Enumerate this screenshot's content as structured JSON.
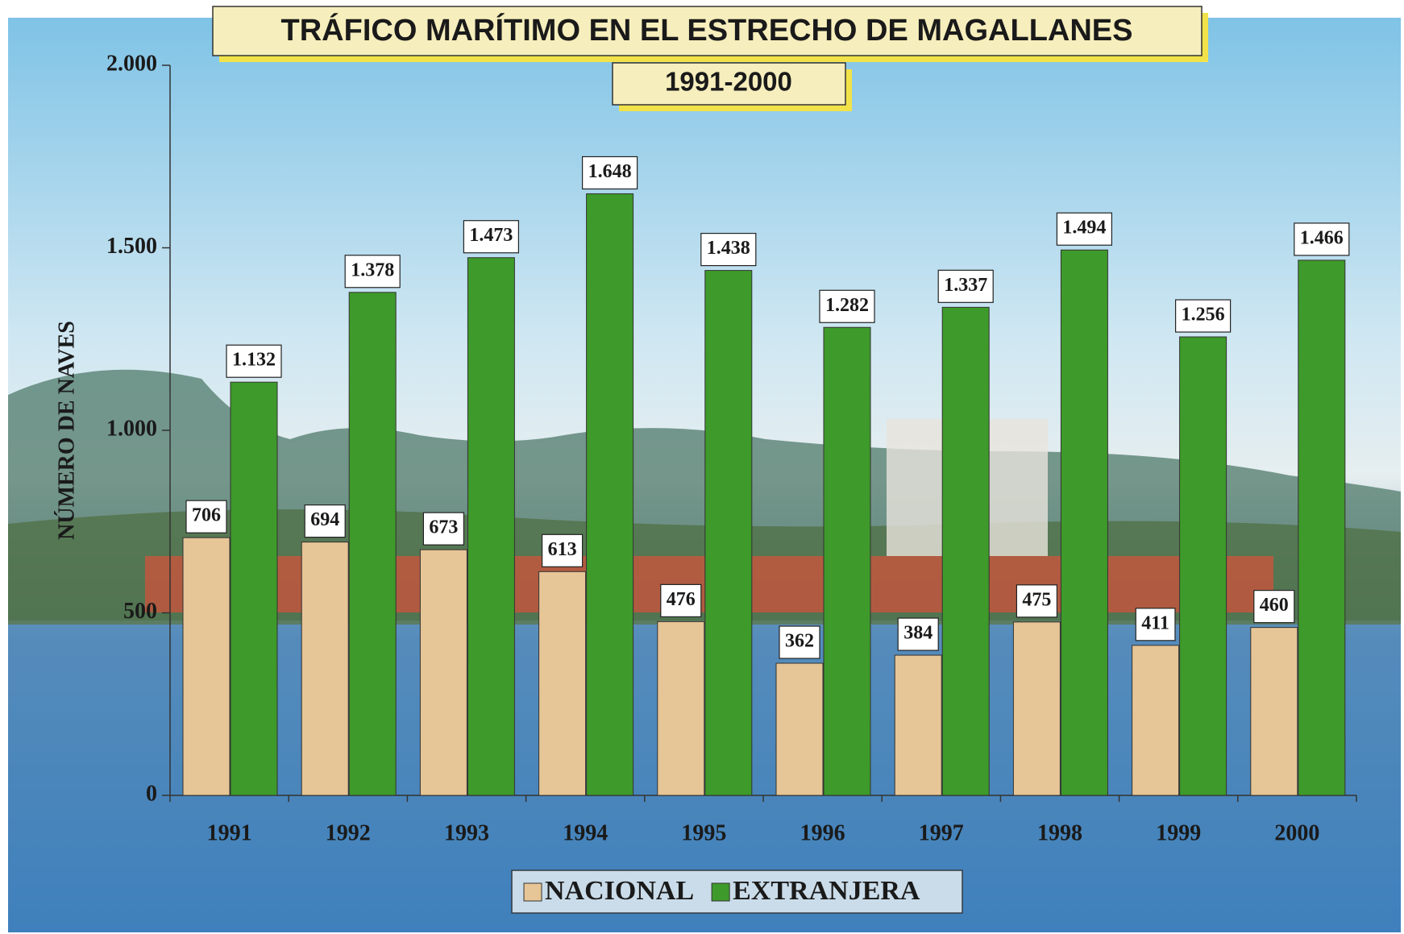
{
  "chart_data": {
    "type": "bar",
    "title": "TRÁFICO MARÍTIMO EN EL ESTRECHO DE MAGALLANES",
    "subtitle": "1991-2000",
    "y_label": "NÚMERO DE NAVES",
    "categories": [
      "1991",
      "1992",
      "1993",
      "1994",
      "1995",
      "1996",
      "1997",
      "1998",
      "1999",
      "2000"
    ],
    "series": [
      {
        "name": "NACIONAL",
        "color": "#e6c596",
        "values": [
          706,
          694,
          673,
          613,
          476,
          362,
          384,
          475,
          411,
          460
        ]
      },
      {
        "name": "EXTRANJERA",
        "color": "#3e9a2a",
        "values": [
          1132,
          1378,
          1473,
          1648,
          1438,
          1282,
          1337,
          1494,
          1256,
          1466
        ],
        "value_labels": [
          "1.132",
          "1.378",
          "1.473",
          "1.648",
          "1.438",
          "1.282",
          "1.337",
          "1.494",
          "1.256",
          "1.466"
        ]
      }
    ],
    "ylim": [
      0,
      2000
    ],
    "yticks": [
      0,
      500,
      {
        "value": 1000,
        "label": "1.000"
      },
      {
        "value": 1500,
        "label": "1.500"
      },
      {
        "value": 2000,
        "label": "2.000"
      }
    ],
    "legend": "bottom"
  }
}
